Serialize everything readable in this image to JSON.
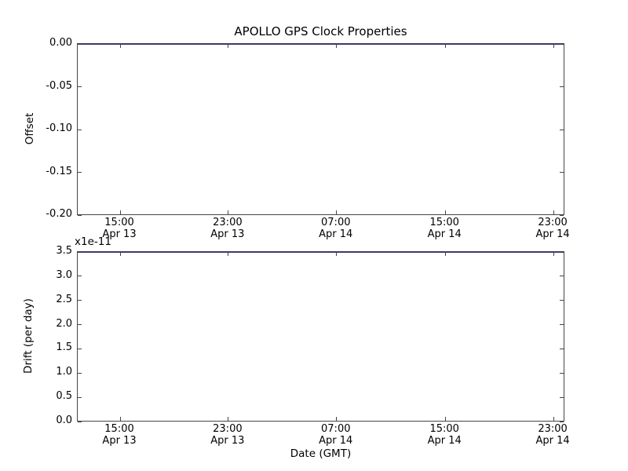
{
  "figure": {
    "title": "APOLLO GPS Clock Properties"
  },
  "colors": {
    "background": "#ffffff",
    "spine": "#454545",
    "series_line": "#3b3b6b",
    "series_base": "#0000ff",
    "text": "#000000"
  },
  "chart_data": [
    {
      "id": "offset_plot",
      "type": "line",
      "title": "APOLLO GPS Clock Properties",
      "ylabel": "Offset",
      "xlabel": "",
      "ylim": [
        -0.2,
        0.0
      ],
      "ytick_labels": [
        "0.00",
        "-0.05",
        "-0.10",
        "-0.15",
        "-0.20"
      ],
      "xticks": [
        {
          "time": "15:00",
          "date": "Apr 13"
        },
        {
          "time": "23:00",
          "date": "Apr 13"
        },
        {
          "time": "07:00",
          "date": "Apr 14"
        },
        {
          "time": "15:00",
          "date": "Apr 14"
        },
        {
          "time": "23:00",
          "date": "Apr 14"
        }
      ],
      "grid": false,
      "legend": false,
      "series": [
        {
          "name": "Offset",
          "color": "#0000ff",
          "constant_y": 0.0,
          "note": "flat line coinciding with the top axis spine across the full x-range"
        }
      ]
    },
    {
      "id": "drift_plot",
      "type": "line",
      "title": "",
      "ylabel": "Drift (per day)",
      "xlabel": "Date (GMT)",
      "y_offset_text": "x1e-11",
      "y_scale": 1e-11,
      "ylim": [
        0.0,
        3.5
      ],
      "ytick_labels": [
        "3.5",
        "3.0",
        "2.5",
        "2.0",
        "1.5",
        "1.0",
        "0.5",
        "0.0"
      ],
      "xticks": [
        {
          "time": "15:00",
          "date": "Apr 13"
        },
        {
          "time": "23:00",
          "date": "Apr 13"
        },
        {
          "time": "07:00",
          "date": "Apr 14"
        },
        {
          "time": "15:00",
          "date": "Apr 14"
        },
        {
          "time": "23:00",
          "date": "Apr 14"
        }
      ],
      "grid": false,
      "legend": false,
      "series": [
        {
          "name": "Drift",
          "color": "#0000ff",
          "constant_y": 3.5,
          "note": "flat line coinciding with the top axis spine across the full x-range"
        }
      ]
    }
  ]
}
